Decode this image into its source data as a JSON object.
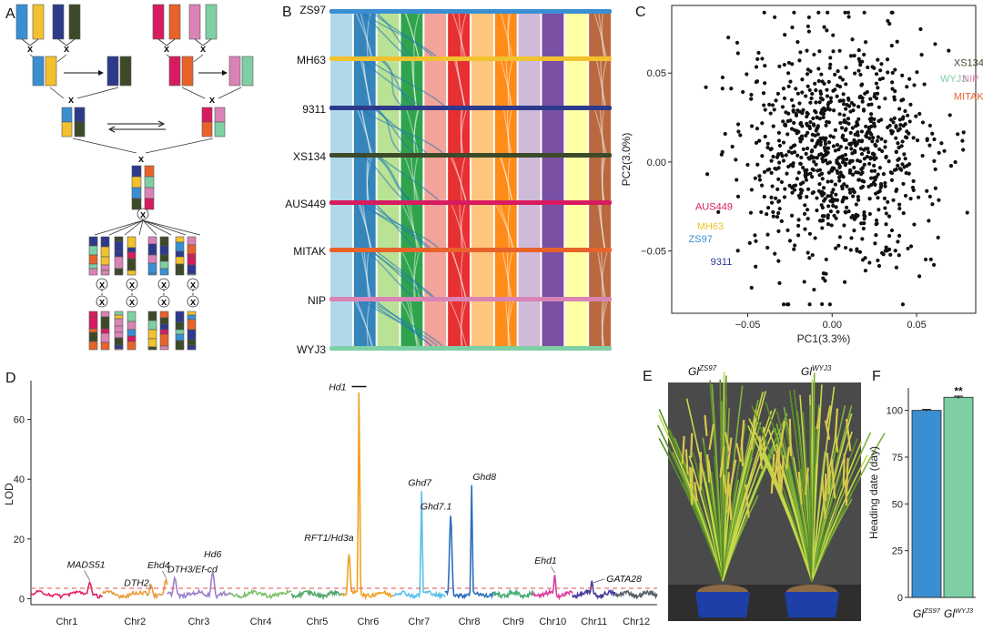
{
  "panels": {
    "a": "A",
    "b": "B",
    "c": "C",
    "d": "D",
    "e": "E",
    "f": "F"
  },
  "colors": {
    "ZS97": "#3a8fd3",
    "MH63": "#f2c12e",
    "9311": "#2d3a8c",
    "XS134": "#3c4a2a",
    "AUS449": "#d81b60",
    "MITAK": "#e8632a",
    "NIP": "#d984b5",
    "WYJ3": "#7fcfa5",
    "photo_bg": "#4a4a4a",
    "threshold": "#e05050"
  },
  "panel_a": {
    "cross_symbol": "x"
  },
  "panel_b": {
    "genomes": [
      "ZS97",
      "MH63",
      "9311",
      "XS134",
      "AUS449",
      "MITAK",
      "NIP",
      "WYJ3"
    ],
    "chromosome_colors": [
      "#a8d4e6",
      "#1f78b4",
      "#b2df8a",
      "#1a9a3a",
      "#f29a8f",
      "#e31a1c",
      "#fdbf6f",
      "#ff7f00",
      "#cab2d6",
      "#6a3d9a",
      "#ffff99",
      "#b15928"
    ]
  },
  "chart_data": [
    {
      "type": "scatter",
      "xlabel": "PC1(3.3%)",
      "ylabel": "PC2(3.0%)",
      "xlim": [
        -0.095,
        0.085
      ],
      "ylim": [
        -0.085,
        0.088
      ],
      "x_ticks": [
        -0.05,
        0.0,
        0.05
      ],
      "x_tick_labels": [
        "−0.05",
        "0.00",
        "0.05"
      ],
      "y_ticks": [
        -0.05,
        0.0,
        0.05
      ],
      "y_tick_labels": [
        "−0.05",
        "0.00",
        "0.05"
      ],
      "point_count": 900,
      "annotations": [
        {
          "label": "XS134",
          "x": 0.072,
          "y": 0.054,
          "color": "#3c4a2a"
        },
        {
          "label": "WYJ3",
          "x": 0.064,
          "y": 0.045,
          "color": "#7fcfa5"
        },
        {
          "label": "NIP",
          "x": 0.077,
          "y": 0.045,
          "color": "#d984b5"
        },
        {
          "label": "MITAK",
          "x": 0.072,
          "y": 0.035,
          "color": "#e8632a"
        },
        {
          "label": "AUS449",
          "x": -0.081,
          "y": -0.027,
          "color": "#d81b60"
        },
        {
          "label": "MH63",
          "x": -0.08,
          "y": -0.038,
          "color": "#f2c12e"
        },
        {
          "label": "ZS97",
          "x": -0.085,
          "y": -0.045,
          "color": "#3a8fd3"
        },
        {
          "label": "9311",
          "x": -0.072,
          "y": -0.058,
          "color": "#2d3a8c"
        }
      ]
    },
    {
      "type": "line",
      "ylabel": "LOD",
      "ylim": [
        -2,
        73
      ],
      "y_ticks": [
        0,
        20,
        40,
        60
      ],
      "y_tick_labels": [
        "0",
        "20",
        "40",
        "60"
      ],
      "threshold": 3.5,
      "chromosomes": [
        "Chr1",
        "Chr2",
        "Chr3",
        "Chr4",
        "Chr5",
        "Chr6",
        "Chr7",
        "Chr8",
        "Chr9",
        "Chr10",
        "Chr11",
        "Chr12"
      ],
      "chromosome_colors": [
        "#e0245e",
        "#e89b3a",
        "#9b7fc8",
        "#7fbf6a",
        "#52a86a",
        "#f0a020",
        "#5bc0e8",
        "#2a6ebd",
        "#4cae7a",
        "#d93ea0",
        "#4a3d9a",
        "#586068"
      ],
      "peaks": [
        {
          "gene": "MADS51",
          "chr": 1,
          "pos": 0.82,
          "lod": 5.5
        },
        {
          "gene": "DTH2",
          "chr": 2,
          "pos": 0.75,
          "lod": 4.5
        },
        {
          "gene": "Ehd4",
          "chr": 2,
          "pos": 0.98,
          "lod": 6.5
        },
        {
          "gene": "DTH3/Ef-cd",
          "chr": 3,
          "pos": 0.12,
          "lod": 7.0
        },
        {
          "gene": "Hd6",
          "chr": 3,
          "pos": 0.72,
          "lod": 9.0
        },
        {
          "gene": "RFT1/Hd3a",
          "chr": 6,
          "pos": 0.12,
          "lod": 15.0
        },
        {
          "gene": "Hd1",
          "chr": 6,
          "pos": 0.32,
          "lod": 71.0
        },
        {
          "gene": "Ghd7",
          "chr": 7,
          "pos": 0.55,
          "lod": 36.0
        },
        {
          "gene": "Ghd7.1",
          "chr": 8,
          "pos": 0.12,
          "lod": 28.0
        },
        {
          "gene": "Ghd8",
          "chr": 8,
          "pos": 0.55,
          "lod": 38.0
        },
        {
          "gene": "Ehd1",
          "chr": 10,
          "pos": 0.55,
          "lod": 8.0
        },
        {
          "gene": "GATA28",
          "chr": 11,
          "pos": 0.45,
          "lod": 6.0
        }
      ]
    },
    {
      "type": "bar",
      "categories": [
        "Gl",
        "Gl"
      ],
      "category_superscripts": [
        "ZS97",
        "WYJ3"
      ],
      "values": [
        100,
        107
      ],
      "errors": [
        0.5,
        0.6
      ],
      "colors": [
        "#3a8fd3",
        "#7fcfa5"
      ],
      "ylabel": "Heading date (day)",
      "ylim": [
        0,
        112
      ],
      "y_ticks": [
        0,
        25,
        50,
        75,
        100
      ],
      "y_tick_labels": [
        "0",
        "25",
        "50",
        "75",
        "100"
      ],
      "significance": "**"
    }
  ],
  "panel_e": {
    "left_label": "Gl",
    "left_sup": "ZS97",
    "right_label": "Gl",
    "right_sup": "WYJ3"
  }
}
